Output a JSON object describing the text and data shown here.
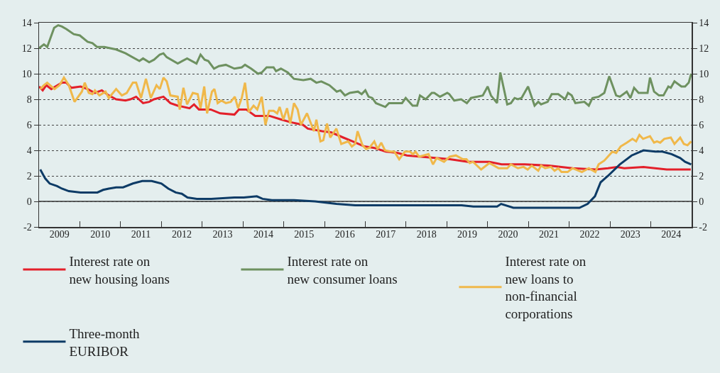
{
  "chart_data": {
    "type": "line",
    "xlim": [
      2009,
      2025
    ],
    "xticks": [
      {
        "value": 2009,
        "label": null
      },
      {
        "value": 2009.5,
        "label": "2009"
      },
      {
        "value": 2010,
        "label": null
      },
      {
        "value": 2010.5,
        "label": "2010"
      },
      {
        "value": 2011,
        "label": null
      },
      {
        "value": 2011.5,
        "label": "2011"
      },
      {
        "value": 2012,
        "label": null
      },
      {
        "value": 2012.5,
        "label": "2012"
      },
      {
        "value": 2013,
        "label": null
      },
      {
        "value": 2013.5,
        "label": "2013"
      },
      {
        "value": 2014,
        "label": null
      },
      {
        "value": 2014.5,
        "label": "2014"
      },
      {
        "value": 2015,
        "label": null
      },
      {
        "value": 2015.5,
        "label": "2015"
      },
      {
        "value": 2016,
        "label": null
      },
      {
        "value": 2016.5,
        "label": "2016"
      },
      {
        "value": 2017,
        "label": null
      },
      {
        "value": 2017.5,
        "label": "2017"
      },
      {
        "value": 2018,
        "label": null
      },
      {
        "value": 2018.5,
        "label": "2018"
      },
      {
        "value": 2019,
        "label": null
      },
      {
        "value": 2019.5,
        "label": "2019"
      },
      {
        "value": 2020,
        "label": null
      },
      {
        "value": 2020.5,
        "label": "2020"
      },
      {
        "value": 2021,
        "label": null
      },
      {
        "value": 2021.5,
        "label": "2021"
      },
      {
        "value": 2022,
        "label": null
      },
      {
        "value": 2022.5,
        "label": "2022"
      },
      {
        "value": 2023,
        "label": null
      },
      {
        "value": 2023.5,
        "label": "2023"
      },
      {
        "value": 2024,
        "label": null
      },
      {
        "value": 2024.5,
        "label": "2024"
      },
      {
        "value": 2025,
        "label": null
      }
    ],
    "ylim": [
      -2,
      14
    ],
    "yticks": [
      -2,
      0,
      2,
      4,
      6,
      8,
      10,
      12,
      14
    ],
    "y2lim": [
      -2,
      14
    ],
    "y2ticks": [
      -2,
      0,
      2,
      4,
      6,
      8,
      10,
      12,
      14
    ],
    "grid": "y",
    "legend": "bottom",
    "marker": "none",
    "line_style": "solid",
    "ref_lines": [
      {
        "axis": "y",
        "value": 0,
        "color": "#333333"
      }
    ],
    "series": [
      {
        "name": "Interest rate on new housing loans",
        "color": "#e3202a",
        "x": [
          2009.0,
          2009.09,
          2009.18,
          2009.3,
          2009.56,
          2009.67,
          2009.79,
          2010.02,
          2010.19,
          2010.37,
          2010.54,
          2010.71,
          2010.89,
          2011.12,
          2011.24,
          2011.38,
          2011.55,
          2011.7,
          2011.82,
          2012.05,
          2012.22,
          2012.4,
          2012.69,
          2012.8,
          2012.92,
          2013.21,
          2013.44,
          2013.79,
          2013.9,
          2014.08,
          2014.3,
          2014.65,
          2014.95,
          2015.17,
          2015.47,
          2015.59,
          2015.94,
          2016.17,
          2016.46,
          2016.69,
          2016.98,
          2017.21,
          2017.5,
          2017.78,
          2018.02,
          2018.37,
          2018.72,
          2019.07,
          2019.52,
          2020.04,
          2020.34,
          2020.91,
          2021.5,
          2022.08,
          2022.65,
          2022.95,
          2023.17,
          2023.35,
          2023.82,
          2024.39,
          2024.98
        ],
        "values": [
          9.0,
          8.7,
          9.1,
          8.8,
          9.3,
          9.3,
          8.9,
          9.0,
          8.8,
          8.5,
          8.7,
          8.3,
          8.0,
          7.9,
          8.0,
          8.2,
          7.7,
          7.8,
          8.0,
          8.2,
          7.7,
          7.5,
          7.3,
          7.6,
          7.2,
          7.2,
          6.9,
          6.8,
          7.2,
          7.2,
          6.7,
          6.7,
          6.4,
          6.2,
          6.0,
          5.7,
          5.5,
          5.4,
          5.0,
          4.7,
          4.3,
          4.2,
          3.9,
          3.8,
          3.6,
          3.5,
          3.4,
          3.3,
          3.1,
          3.1,
          2.9,
          2.9,
          2.8,
          2.6,
          2.5,
          2.6,
          2.7,
          2.6,
          2.7,
          2.5,
          2.5
        ]
      },
      {
        "name": "Interest rate on new consumer loans",
        "color": "#6e9160",
        "x": [
          2009.0,
          2009.12,
          2009.2,
          2009.37,
          2009.47,
          2009.56,
          2009.67,
          2009.85,
          2010.0,
          2010.19,
          2010.31,
          2010.42,
          2010.6,
          2010.89,
          2011.12,
          2011.46,
          2011.55,
          2011.7,
          2011.82,
          2011.96,
          2012.05,
          2012.13,
          2012.4,
          2012.63,
          2012.86,
          2012.96,
          2013.06,
          2013.15,
          2013.29,
          2013.41,
          2013.58,
          2013.79,
          2013.97,
          2014.05,
          2014.2,
          2014.37,
          2014.46,
          2014.58,
          2014.75,
          2014.81,
          2014.93,
          2015.1,
          2015.25,
          2015.48,
          2015.66,
          2015.8,
          2015.92,
          2016.12,
          2016.3,
          2016.39,
          2016.5,
          2016.62,
          2016.82,
          2016.91,
          2017.0,
          2017.08,
          2017.17,
          2017.26,
          2017.49,
          2017.58,
          2017.76,
          2017.9,
          2017.99,
          2018.16,
          2018.27,
          2018.34,
          2018.48,
          2018.63,
          2018.69,
          2018.83,
          2019.01,
          2019.06,
          2019.18,
          2019.35,
          2019.49,
          2019.59,
          2019.88,
          2020.0,
          2020.08,
          2020.23,
          2020.31,
          2020.48,
          2020.57,
          2020.66,
          2020.74,
          2020.83,
          2020.99,
          2021.15,
          2021.24,
          2021.31,
          2021.47,
          2021.57,
          2021.73,
          2021.9,
          2021.97,
          2022.06,
          2022.15,
          2022.37,
          2022.48,
          2022.57,
          2022.72,
          2022.86,
          2022.98,
          2023.15,
          2023.24,
          2023.41,
          2023.5,
          2023.59,
          2023.7,
          2023.92,
          2023.98,
          2024.08,
          2024.2,
          2024.31,
          2024.43,
          2024.49,
          2024.58,
          2024.75,
          2024.84,
          2024.93,
          2024.99
        ],
        "values": [
          12.0,
          12.3,
          12.1,
          13.6,
          13.8,
          13.7,
          13.5,
          13.1,
          13.0,
          12.5,
          12.4,
          12.1,
          12.1,
          11.9,
          11.6,
          11.0,
          11.2,
          10.9,
          11.1,
          11.5,
          11.6,
          11.3,
          10.8,
          11.2,
          10.8,
          11.5,
          11.1,
          11.0,
          10.4,
          10.6,
          10.7,
          10.4,
          10.5,
          10.7,
          10.4,
          10.0,
          10.1,
          10.5,
          10.5,
          10.2,
          10.4,
          10.1,
          9.6,
          9.5,
          9.6,
          9.3,
          9.4,
          9.1,
          8.6,
          8.7,
          8.3,
          8.5,
          8.6,
          8.4,
          8.7,
          8.2,
          8.1,
          7.7,
          7.4,
          7.7,
          7.7,
          7.7,
          8.1,
          7.5,
          7.5,
          8.3,
          8.0,
          8.5,
          8.5,
          8.2,
          8.5,
          8.4,
          7.9,
          8.0,
          7.7,
          8.1,
          8.3,
          9.0,
          8.3,
          7.7,
          10.1,
          7.6,
          7.7,
          8.1,
          8.0,
          8.1,
          9.0,
          7.5,
          7.8,
          7.6,
          7.8,
          8.4,
          8.4,
          8.0,
          8.5,
          8.3,
          7.7,
          7.8,
          7.5,
          8.1,
          8.2,
          8.5,
          9.8,
          8.3,
          8.2,
          8.6,
          8.1,
          8.9,
          8.5,
          8.5,
          9.7,
          8.6,
          8.3,
          8.3,
          9.0,
          8.9,
          9.4,
          9.0,
          9.0,
          9.3,
          10.0
        ]
      },
      {
        "name": "Interest rate on new loans to non-financial corporations",
        "color": "#f0b84a",
        "x": [
          2009.03,
          2009.12,
          2009.2,
          2009.38,
          2009.5,
          2009.61,
          2009.73,
          2009.87,
          2010.05,
          2010.12,
          2010.22,
          2010.31,
          2010.37,
          2010.48,
          2010.63,
          2010.71,
          2010.89,
          2011.03,
          2011.15,
          2011.3,
          2011.38,
          2011.5,
          2011.62,
          2011.74,
          2011.88,
          2011.96,
          2012.05,
          2012.13,
          2012.22,
          2012.4,
          2012.45,
          2012.54,
          2012.63,
          2012.77,
          2012.89,
          2012.96,
          2013.05,
          2013.12,
          2013.24,
          2013.3,
          2013.38,
          2013.47,
          2013.58,
          2013.7,
          2013.8,
          2013.88,
          2013.97,
          2014.05,
          2014.14,
          2014.26,
          2014.35,
          2014.46,
          2014.55,
          2014.64,
          2014.75,
          2014.84,
          2014.9,
          2014.99,
          2015.08,
          2015.16,
          2015.25,
          2015.34,
          2015.42,
          2015.57,
          2015.74,
          2015.8,
          2015.9,
          2015.97,
          2016.06,
          2016.14,
          2016.29,
          2016.41,
          2016.58,
          2016.67,
          2016.75,
          2016.81,
          2016.93,
          2017.02,
          2017.1,
          2017.22,
          2017.3,
          2017.39,
          2017.48,
          2017.62,
          2017.71,
          2017.83,
          2017.97,
          2018.09,
          2018.17,
          2018.23,
          2018.32,
          2018.55,
          2018.66,
          2018.75,
          2018.93,
          2019.07,
          2019.22,
          2019.39,
          2019.48,
          2019.56,
          2019.64,
          2019.84,
          2020.04,
          2020.16,
          2020.27,
          2020.39,
          2020.48,
          2020.57,
          2020.74,
          2020.88,
          2020.98,
          2021.08,
          2021.24,
          2021.31,
          2021.41,
          2021.55,
          2021.64,
          2021.73,
          2021.81,
          2021.96,
          2022.08,
          2022.31,
          2022.48,
          2022.64,
          2022.72,
          2022.86,
          2023.06,
          2023.15,
          2023.26,
          2023.41,
          2023.55,
          2023.64,
          2023.72,
          2023.81,
          2023.98,
          2024.08,
          2024.15,
          2024.23,
          2024.33,
          2024.49,
          2024.58,
          2024.72,
          2024.81,
          2024.9,
          2024.99
        ],
        "values": [
          8.8,
          9.1,
          9.3,
          8.8,
          9.1,
          9.7,
          9.1,
          7.8,
          8.6,
          9.3,
          8.5,
          8.4,
          8.7,
          8.3,
          8.6,
          8.1,
          8.8,
          8.3,
          8.5,
          9.3,
          9.3,
          8.1,
          9.6,
          8.1,
          9.1,
          8.8,
          9.7,
          9.4,
          8.3,
          8.2,
          7.2,
          8.9,
          7.6,
          8.5,
          8.4,
          7.3,
          9.0,
          6.9,
          8.6,
          8.8,
          7.7,
          7.9,
          7.7,
          7.8,
          8.2,
          7.3,
          8.1,
          9.3,
          7.0,
          7.5,
          7.2,
          8.2,
          6.0,
          7.1,
          7.1,
          6.9,
          7.4,
          6.4,
          7.3,
          6.1,
          7.7,
          7.2,
          6.0,
          6.9,
          5.5,
          6.4,
          4.7,
          4.8,
          6.1,
          5.0,
          5.7,
          4.5,
          4.7,
          4.3,
          4.5,
          5.5,
          4.4,
          4.1,
          4.2,
          4.7,
          4.1,
          4.6,
          4.0,
          3.9,
          3.9,
          3.3,
          3.9,
          3.9,
          3.7,
          3.9,
          3.5,
          3.7,
          2.9,
          3.4,
          3.1,
          3.5,
          3.6,
          3.3,
          3.3,
          3.0,
          3.1,
          2.5,
          3.0,
          2.8,
          2.6,
          2.6,
          2.6,
          2.9,
          2.6,
          2.7,
          2.5,
          2.8,
          2.4,
          2.8,
          2.6,
          2.7,
          2.4,
          2.6,
          2.3,
          2.3,
          2.6,
          2.3,
          2.6,
          2.3,
          2.9,
          3.2,
          3.9,
          3.8,
          4.3,
          4.6,
          4.9,
          4.7,
          5.2,
          4.9,
          5.1,
          4.6,
          4.7,
          4.6,
          4.9,
          5.0,
          4.5,
          5.0,
          4.5,
          4.4,
          4.7
        ]
      },
      {
        "name": "Three-month EURIBOR",
        "color": "#0d3b66",
        "x": [
          2009.03,
          2009.15,
          2009.26,
          2009.44,
          2009.56,
          2009.73,
          2010.02,
          2010.25,
          2010.43,
          2010.57,
          2010.71,
          2010.89,
          2011.06,
          2011.3,
          2011.53,
          2011.76,
          2012.0,
          2012.17,
          2012.35,
          2012.5,
          2012.64,
          2012.87,
          2013.22,
          2013.79,
          2014.02,
          2014.34,
          2014.48,
          2014.71,
          2015.25,
          2015.77,
          2016.29,
          2016.75,
          2017.5,
          2018.37,
          2019.36,
          2019.65,
          2020.23,
          2020.33,
          2020.63,
          2021.21,
          2021.91,
          2022.25,
          2022.45,
          2022.63,
          2022.77,
          2022.95,
          2023.24,
          2023.53,
          2023.82,
          2024.11,
          2024.28,
          2024.51,
          2024.72,
          2024.84,
          2024.99
        ],
        "values": [
          2.5,
          1.8,
          1.4,
          1.2,
          1.0,
          0.8,
          0.7,
          0.7,
          0.7,
          0.9,
          1.0,
          1.1,
          1.1,
          1.4,
          1.6,
          1.6,
          1.4,
          1.0,
          0.7,
          0.6,
          0.3,
          0.2,
          0.2,
          0.3,
          0.3,
          0.4,
          0.2,
          0.1,
          0.1,
          0.0,
          -0.2,
          -0.3,
          -0.3,
          -0.3,
          -0.3,
          -0.4,
          -0.4,
          -0.2,
          -0.5,
          -0.5,
          -0.5,
          -0.5,
          -0.2,
          0.4,
          1.5,
          2.0,
          2.9,
          3.6,
          4.0,
          3.9,
          3.9,
          3.7,
          3.4,
          3.1,
          2.9
        ]
      }
    ]
  }
}
